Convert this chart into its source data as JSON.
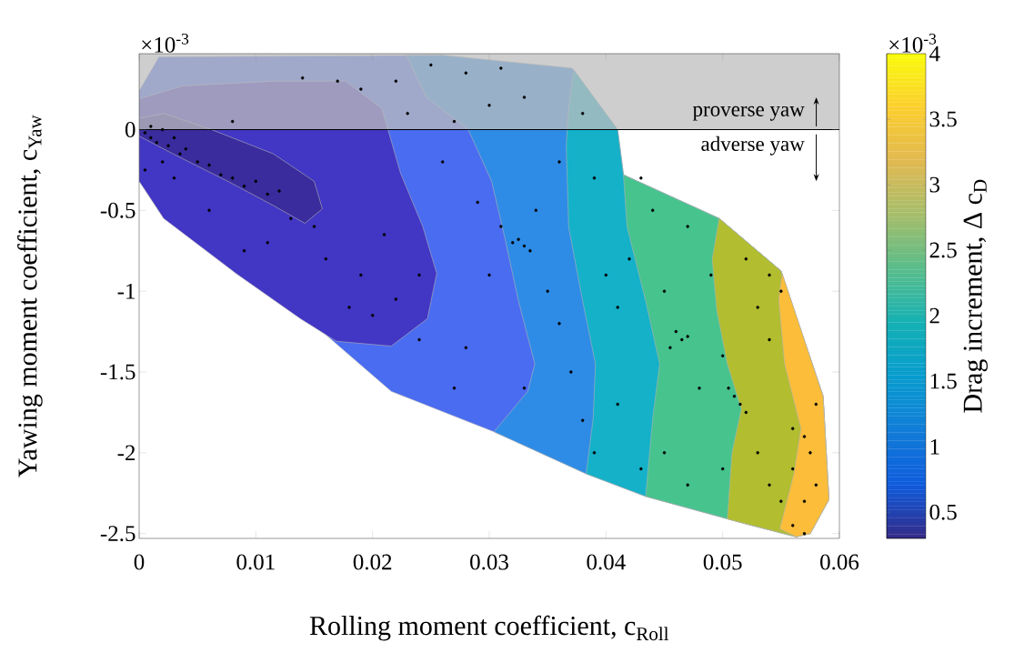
{
  "chart_data": {
    "type": "scatter",
    "xlabel": "Rolling moment coefficient, c$_{Roll}$",
    "ylabel": "Yawing moment coefficient, c$_{Yaw}$",
    "clabel": "Drag increment, Δ c$_{D}$",
    "clim": [
      0.3,
      4
    ],
    "cticks": [
      0.5,
      1,
      1.5,
      2,
      2.5,
      3,
      3.5,
      4
    ],
    "xlim": [
      0,
      0.06
    ],
    "xticks": [
      0,
      0.01,
      0.02,
      0.03,
      0.04,
      0.05,
      0.06
    ],
    "ylim": [
      -2.53,
      0.47
    ],
    "yticks": [
      -2.5,
      -2,
      -1.5,
      -1,
      -0.5,
      0
    ],
    "annotations": [
      "×10$^{-3}$",
      "×10$^{-3}$",
      "adverse yaw"
    ],
    "bands": [
      {
        "axis": "y",
        "from": 0,
        "to": 0.47,
        "color": "#bebebe",
        "label": "proverse yaw"
      }
    ],
    "ref_lines": [
      {
        "axis": "y",
        "value": 0,
        "color": "#000000"
      }
    ],
    "series": [
      {
        "type": "area",
        "color": "#4a6cf0",
        "x": [
          0,
          0.0017,
          0.026,
          0.0371,
          0.041,
          0.0415,
          0.0497,
          0.055,
          0.0586,
          0.0591,
          0.0575,
          0.0563,
          0.052,
          0.0434,
          0.0383,
          0.0304,
          0.0216,
          0
        ],
        "values": [
          0.24,
          0.45,
          0.46,
          0.38,
          0.0,
          -0.28,
          -0.55,
          -0.875,
          -1.65,
          -2.29,
          -2.5,
          -2.52,
          -2.44,
          -2.27,
          -2.13,
          -1.87,
          -1.62,
          -0.27
        ]
      },
      {
        "type": "area",
        "color": "#4236c4",
        "x": [
          0,
          0.0037,
          0.0115,
          0.0177,
          0.0208,
          0.0224,
          0.0243,
          0.0255,
          0.0247,
          0.0216,
          0.0169,
          0.0138,
          0.0083,
          0.0021,
          0
        ],
        "values": [
          0.19,
          0.27,
          0.3,
          0.3,
          0.13,
          -0.27,
          -0.6,
          -0.89,
          -1.17,
          -1.34,
          -1.31,
          -1.17,
          -0.89,
          -0.55,
          -0.32
        ]
      },
      {
        "type": "area",
        "color": "#3a2c9c",
        "x": [
          0,
          0.0021,
          0.0062,
          0.0115,
          0.015,
          0.0157,
          0.0142,
          0.0115,
          0.0076,
          0.0029,
          0
        ],
        "values": [
          0.07,
          0.1,
          0.0,
          -0.15,
          -0.32,
          -0.49,
          -0.58,
          -0.47,
          -0.32,
          -0.15,
          -0.04
        ]
      },
      {
        "type": "area",
        "color": "#2f8ce6",
        "x": [
          0.0229,
          0.0246,
          0.0282,
          0.0302,
          0.0313,
          0.0325,
          0.0339,
          0.0333,
          0.0304,
          0.0383,
          0.0434,
          0.052,
          0.0563,
          0.0575,
          0.0591,
          0.0586,
          0.055,
          0.0497,
          0.0415,
          0.041,
          0.0371,
          0.026
        ],
        "values": [
          0.46,
          0.2,
          0.0,
          -0.32,
          -0.66,
          -1.06,
          -1.45,
          -1.62,
          -1.87,
          -2.13,
          -2.27,
          -2.44,
          -2.52,
          -2.5,
          -2.29,
          -1.65,
          -0.875,
          -0.55,
          -0.28,
          0.0,
          0.38,
          0.46
        ]
      },
      {
        "type": "area",
        "color": "#14b1c9",
        "x": [
          0.03725,
          0.0368,
          0.0366,
          0.0368,
          0.038,
          0.0391,
          0.0389,
          0.0383,
          0.0434,
          0.052,
          0.0563,
          0.0575,
          0.0591,
          0.0586,
          0.055,
          0.0497,
          0.0415,
          0.041
        ],
        "values": [
          0.37,
          0.13,
          -0.1,
          -0.6,
          -1.06,
          -1.45,
          -1.79,
          -2.13,
          -2.27,
          -2.44,
          -2.52,
          -2.5,
          -2.29,
          -1.65,
          -0.875,
          -0.55,
          -0.28,
          0.0
        ]
      },
      {
        "type": "area",
        "color": "#47c38e",
        "x": [
          0.0415,
          0.0418,
          0.0434,
          0.0446,
          0.044,
          0.0434,
          0.052,
          0.0563,
          0.0575,
          0.0591,
          0.0586,
          0.055,
          0.0497
        ],
        "values": [
          -0.28,
          -0.6,
          -1.06,
          -1.45,
          -1.79,
          -2.27,
          -2.44,
          -2.52,
          -2.5,
          -2.29,
          -1.65,
          -0.875,
          -0.55
        ]
      },
      {
        "type": "area",
        "color": "#b2bd30",
        "x": [
          0.0497,
          0.0491,
          0.0495,
          0.0504,
          0.0516,
          0.0508,
          0.0504,
          0.052,
          0.0563,
          0.0575,
          0.0591,
          0.0586,
          0.055
        ],
        "values": [
          -0.55,
          -0.8,
          -1.12,
          -1.45,
          -1.73,
          -2.0,
          -2.41,
          -2.44,
          -2.52,
          -2.5,
          -2.29,
          -1.65,
          -0.875
        ]
      },
      {
        "type": "area",
        "color": "#fbbd3a",
        "x": [
          0.0551,
          0.0548,
          0.0553,
          0.0567,
          0.0561,
          0.0549,
          0.0563,
          0.0575,
          0.0591,
          0.0586
        ],
        "values": [
          -0.89,
          -1.05,
          -1.45,
          -1.85,
          -2.13,
          -2.47,
          -2.52,
          -2.5,
          -2.29,
          -1.65
        ]
      },
      {
        "type": "scatter",
        "color": "#000000",
        "marker": "circle",
        "x": [
          0.0005,
          0.001,
          0.0015,
          0.002,
          0.0025,
          0.003,
          0.0035,
          0.004,
          0.005,
          0.006,
          0.007,
          0.008,
          0.009,
          0.01,
          0.011,
          0.012,
          0.001,
          0.002,
          0.003,
          0.0005,
          0.013,
          0.015,
          0.011,
          0.016,
          0.019,
          0.021,
          0.022,
          0.018,
          0.024,
          0.02,
          0.017,
          0.019,
          0.022,
          0.025,
          0.028,
          0.031,
          0.03,
          0.027,
          0.033,
          0.026,
          0.029,
          0.031,
          0.032,
          0.033,
          0.0325,
          0.0335,
          0.034,
          0.03,
          0.035,
          0.028,
          0.033,
          0.036,
          0.037,
          0.038,
          0.039,
          0.041,
          0.042,
          0.043,
          0.044,
          0.04,
          0.041,
          0.043,
          0.045,
          0.046,
          0.0465,
          0.047,
          0.0455,
          0.047,
          0.048,
          0.045,
          0.047,
          0.049,
          0.05,
          0.051,
          0.0515,
          0.0505,
          0.052,
          0.05,
          0.052,
          0.053,
          0.054,
          0.053,
          0.054,
          0.055,
          0.056,
          0.057,
          0.0575,
          0.056,
          0.057,
          0.056,
          0.057,
          0.058,
          0.055,
          0.054,
          0.058,
          0.036,
          0.038,
          0.039,
          0.023,
          0.014,
          0.008,
          0.006,
          0.009,
          0.024,
          0.027
        ],
        "values": [
          -0.02,
          -0.05,
          -0.08,
          0.0,
          -0.1,
          -0.05,
          -0.15,
          -0.12,
          -0.2,
          -0.22,
          -0.28,
          -0.3,
          -0.35,
          -0.32,
          -0.4,
          -0.38,
          0.02,
          -0.2,
          -0.3,
          -0.25,
          -0.55,
          -0.6,
          -0.7,
          -0.8,
          -0.9,
          -0.65,
          -1.05,
          -1.1,
          -1.3,
          -1.15,
          0.3,
          0.25,
          0.3,
          0.4,
          0.35,
          0.38,
          0.15,
          0.05,
          0.2,
          -0.2,
          -0.45,
          -0.6,
          -0.7,
          -0.72,
          -0.68,
          -0.75,
          -0.5,
          -0.9,
          -1.0,
          -1.35,
          -1.6,
          -1.2,
          -1.5,
          -1.8,
          -2.0,
          -1.1,
          -0.8,
          -0.3,
          -0.5,
          -0.9,
          -1.7,
          -2.1,
          -1.0,
          -1.25,
          -1.3,
          -1.28,
          -1.35,
          -0.6,
          -1.6,
          -2.0,
          -2.2,
          -0.9,
          -1.4,
          -1.65,
          -1.7,
          -1.6,
          -1.75,
          -2.1,
          -0.8,
          -1.1,
          -1.3,
          -2.0,
          -2.2,
          -2.3,
          -1.85,
          -1.9,
          -2.0,
          -2.1,
          -2.3,
          -2.45,
          -2.5,
          -2.2,
          -1.0,
          -0.9,
          -1.7,
          -0.2,
          0.1,
          -0.3,
          0.1,
          0.32,
          0.05,
          -0.5,
          -0.75,
          -0.9,
          -1.6
        ]
      }
    ]
  }
}
